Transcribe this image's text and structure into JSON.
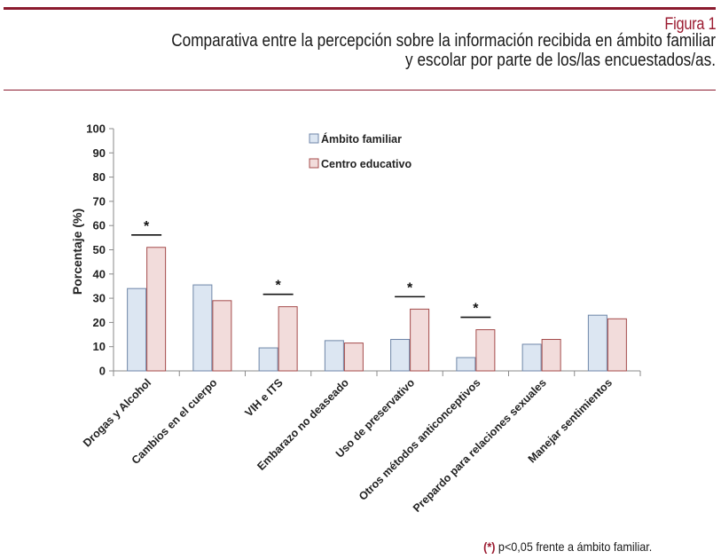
{
  "header": {
    "figure_label": "Figura 1",
    "title_line1": "Comparativa entre la percepción sobre la información recibida en ámbito familiar",
    "title_line2": "y escolar por parte de los/las encuestados/as."
  },
  "footnote": {
    "marker": "(*)",
    "text": " p<0,05 frente a ámbito familiar."
  },
  "chart_data": {
    "type": "bar",
    "ylabel": "Porcentaje (%)",
    "xlabel": "",
    "ylim": [
      0,
      100
    ],
    "yticks": [
      0,
      10,
      20,
      30,
      40,
      50,
      60,
      70,
      80,
      90,
      100
    ],
    "categories": [
      "Drogas y Alcohol",
      "Cambios en el cuerpo",
      "VIH e ITS",
      "Embarazo no deaseado",
      "Uso de preservativo",
      "Otros métodos anticonceptivos",
      "Prepardo para relaciones sexuales",
      "Manejar sentimientos"
    ],
    "series": [
      {
        "name": "Ámbito familiar",
        "color": "#dce6f2",
        "stroke": "#6f86a8",
        "values": [
          34,
          35.5,
          9.5,
          12.5,
          13,
          5.5,
          11,
          23
        ]
      },
      {
        "name": "Centro educativo",
        "color": "#f2dcdb",
        "stroke": "#a44b4b",
        "values": [
          51,
          29,
          26.5,
          11.5,
          25.5,
          17,
          13,
          21.5
        ]
      }
    ],
    "significance": {
      "symbol": "*",
      "categories": [
        0,
        2,
        4,
        5
      ]
    },
    "legend_position": "top-center"
  }
}
